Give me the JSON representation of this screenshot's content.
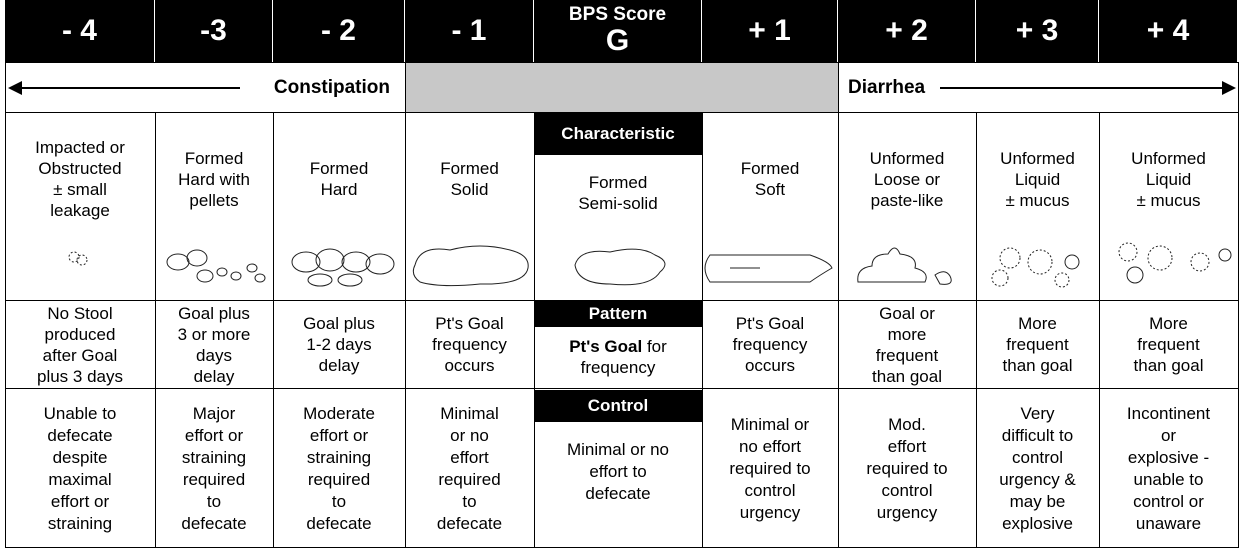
{
  "header": {
    "score_label": "BPS Score",
    "cells": [
      "- 4",
      "-3",
      "- 2",
      "- 1",
      "G",
      "+ 1",
      "+ 2",
      "+ 3",
      "+ 4"
    ]
  },
  "direction": {
    "left": "Constipation",
    "right": "Diarrhea"
  },
  "characteristic": {
    "label": "Characteristic",
    "cells": [
      [
        "Impacted or",
        "Obstructed",
        "± small",
        "leakage"
      ],
      [
        "Formed",
        "Hard with",
        "pellets"
      ],
      [
        "Formed",
        "Hard"
      ],
      [
        "Formed",
        "Solid"
      ],
      [
        "Formed",
        "Semi-solid"
      ],
      [
        "Formed",
        "Soft"
      ],
      [
        "Unformed",
        "Loose or",
        "paste-like"
      ],
      [
        "Unformed",
        "Liquid",
        "± mucus"
      ],
      [
        "Unformed",
        "Liquid",
        "± mucus"
      ]
    ]
  },
  "pattern": {
    "label": "Pattern",
    "center_bold": "Pt's Goal",
    "cells": [
      [
        "No Stool",
        "produced",
        "after Goal",
        "plus 3 days"
      ],
      [
        "Goal plus",
        "3 or more",
        "days",
        "delay"
      ],
      [
        "Goal plus",
        "1-2 days",
        "delay"
      ],
      [
        "Pt's Goal",
        "frequency",
        "occurs"
      ],
      [
        "for",
        "frequency"
      ],
      [
        "Pt's Goal",
        "frequency",
        "occurs"
      ],
      [
        "Goal or",
        "more",
        "frequent",
        "than goal"
      ],
      [
        "More",
        "frequent",
        "than goal"
      ],
      [
        "More",
        "frequent",
        "than goal"
      ]
    ]
  },
  "control": {
    "label": "Control",
    "cells": [
      [
        "Unable to",
        "defecate",
        "despite",
        "maximal",
        "effort or",
        "straining"
      ],
      [
        "Major",
        "effort or",
        "straining",
        "required",
        "to",
        "defecate"
      ],
      [
        "Moderate",
        "effort or",
        "straining",
        "required",
        "to",
        "defecate"
      ],
      [
        "Minimal",
        "or no",
        "effort",
        "required",
        "to",
        "defecate"
      ],
      [
        "Minimal or no",
        "effort to",
        "defecate"
      ],
      [
        "Minimal or",
        "no effort",
        "required to",
        "control",
        "urgency"
      ],
      [
        "Mod.",
        "effort",
        "required to",
        "control",
        "urgency"
      ],
      [
        "Very",
        "difficult to",
        "control",
        "urgency &",
        "may be",
        "explosive"
      ],
      [
        "Incontinent",
        "or",
        "explosive -",
        "unable to",
        "control or",
        "unaware"
      ]
    ]
  }
}
